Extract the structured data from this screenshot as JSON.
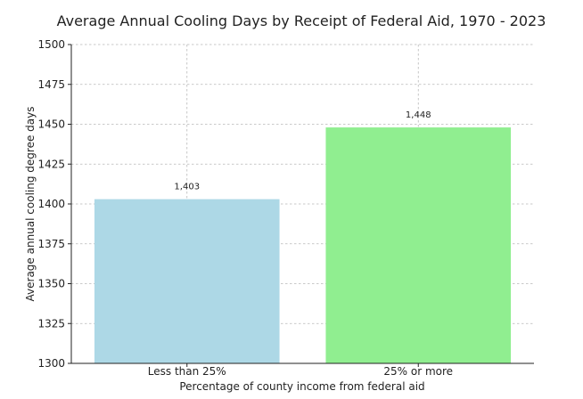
{
  "chart_data": {
    "type": "bar",
    "title": "Average Annual Cooling Days by Receipt of Federal Aid, 1970 - 2023",
    "xlabel": "Percentage of county income from federal aid",
    "ylabel": "Average annual cooling degree days",
    "categories": [
      "Less than 25%",
      "25% or more"
    ],
    "values": [
      1403,
      1448
    ],
    "data_labels": [
      "1,403",
      "1,448"
    ],
    "colors": [
      "#add8e6",
      "#90ee90"
    ],
    "ylim": [
      1300,
      1500
    ],
    "yticks": [
      1300,
      1325,
      1350,
      1375,
      1400,
      1425,
      1450,
      1475,
      1500
    ],
    "grid": true,
    "legend": "none"
  }
}
